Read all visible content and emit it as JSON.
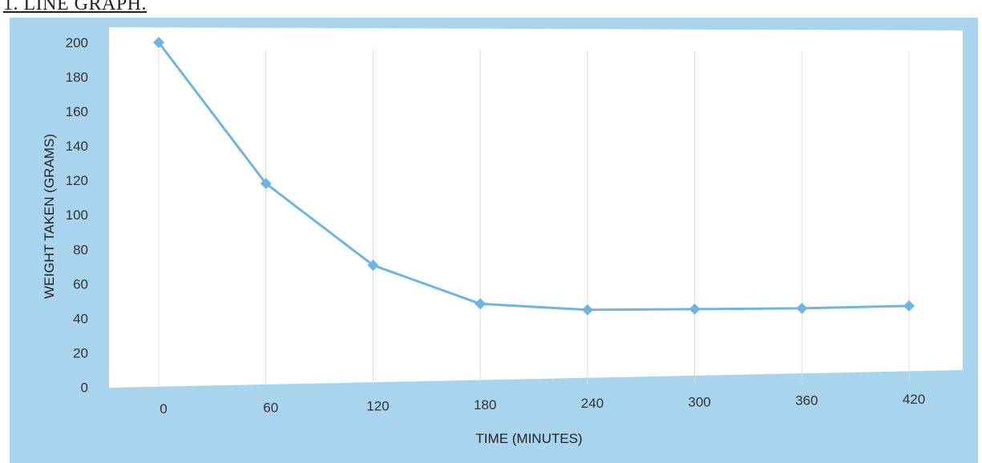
{
  "page": {
    "heading": "1. LINE GRAPH."
  },
  "colors": {
    "frame": "#a9d4ee",
    "plot": "#ffffff",
    "line": "#6fb5e3",
    "grid": "#dcdcdc"
  },
  "chart_data": {
    "type": "line",
    "title": "",
    "xlabel": "TIME (MINUTES)",
    "ylabel": "WEIGHT TAKEN (GRAMS)",
    "x": [
      0,
      60,
      120,
      180,
      240,
      300,
      360,
      420
    ],
    "series": [
      {
        "values": [
          200,
          118,
          70,
          47,
          43,
          43,
          43,
          44
        ]
      }
    ],
    "xticks": [
      "0",
      "60",
      "120",
      "180",
      "240",
      "300",
      "360",
      "420"
    ],
    "yticks": [
      "0",
      "20",
      "40",
      "60",
      "80",
      "100",
      "120",
      "140",
      "160",
      "180",
      "200"
    ],
    "ylim": [
      0,
      200
    ],
    "grid": "vertical",
    "marker": "diamond"
  }
}
